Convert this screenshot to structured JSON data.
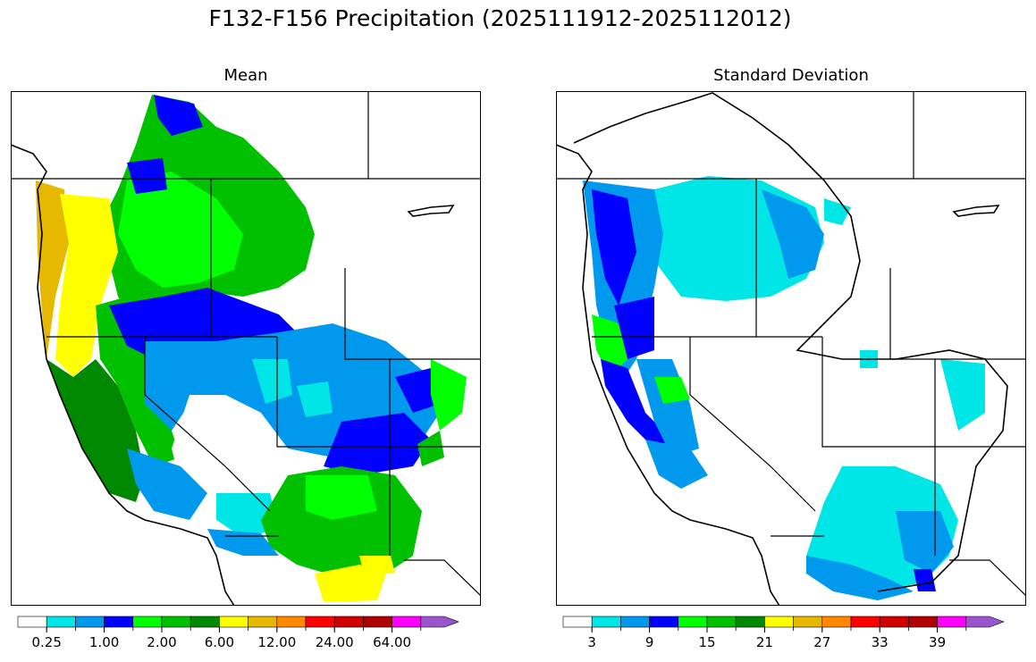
{
  "figure": {
    "title": "F132-F156 Precipitation (2025111912-2025112012)"
  },
  "panels": [
    {
      "id": "mean",
      "title": "Mean"
    },
    {
      "id": "std",
      "title": "Standard Deviation"
    }
  ],
  "colorbars": {
    "mean": {
      "colors": [
        "#ffffff",
        "#00e5e5",
        "#0099ee",
        "#0000ff",
        "#00ff00",
        "#00c000",
        "#008800",
        "#ffff00",
        "#e6b800",
        "#ff8800",
        "#ff0000",
        "#d00000",
        "#b00000",
        "#ff00ff",
        "#9955cc"
      ],
      "tick_labels": [
        "0.25",
        "1.00",
        "2.00",
        "6.00",
        "12.00",
        "24.00",
        "64.00"
      ],
      "tick_after_index": [
        0,
        2,
        4,
        6,
        8,
        10,
        12
      ]
    },
    "std": {
      "colors": [
        "#ffffff",
        "#00e5e5",
        "#0099ee",
        "#0000ff",
        "#00ff00",
        "#00c000",
        "#008800",
        "#ffff00",
        "#e6b800",
        "#ff8800",
        "#ff0000",
        "#d00000",
        "#b00000",
        "#ff00ff",
        "#9955cc"
      ],
      "tick_labels": [
        "3",
        "9",
        "15",
        "21",
        "27",
        "33",
        "39"
      ],
      "tick_after_index": [
        0,
        2,
        4,
        6,
        8,
        10,
        12
      ]
    }
  },
  "legend_colors": {
    "white": "#ffffff",
    "cyan": "#00e5e5",
    "sky": "#0099ee",
    "blue": "#0000ff",
    "lime": "#00ff00",
    "green": "#00c000",
    "darkgreen": "#008800",
    "yellow": "#ffff00",
    "gold": "#e6b800"
  }
}
